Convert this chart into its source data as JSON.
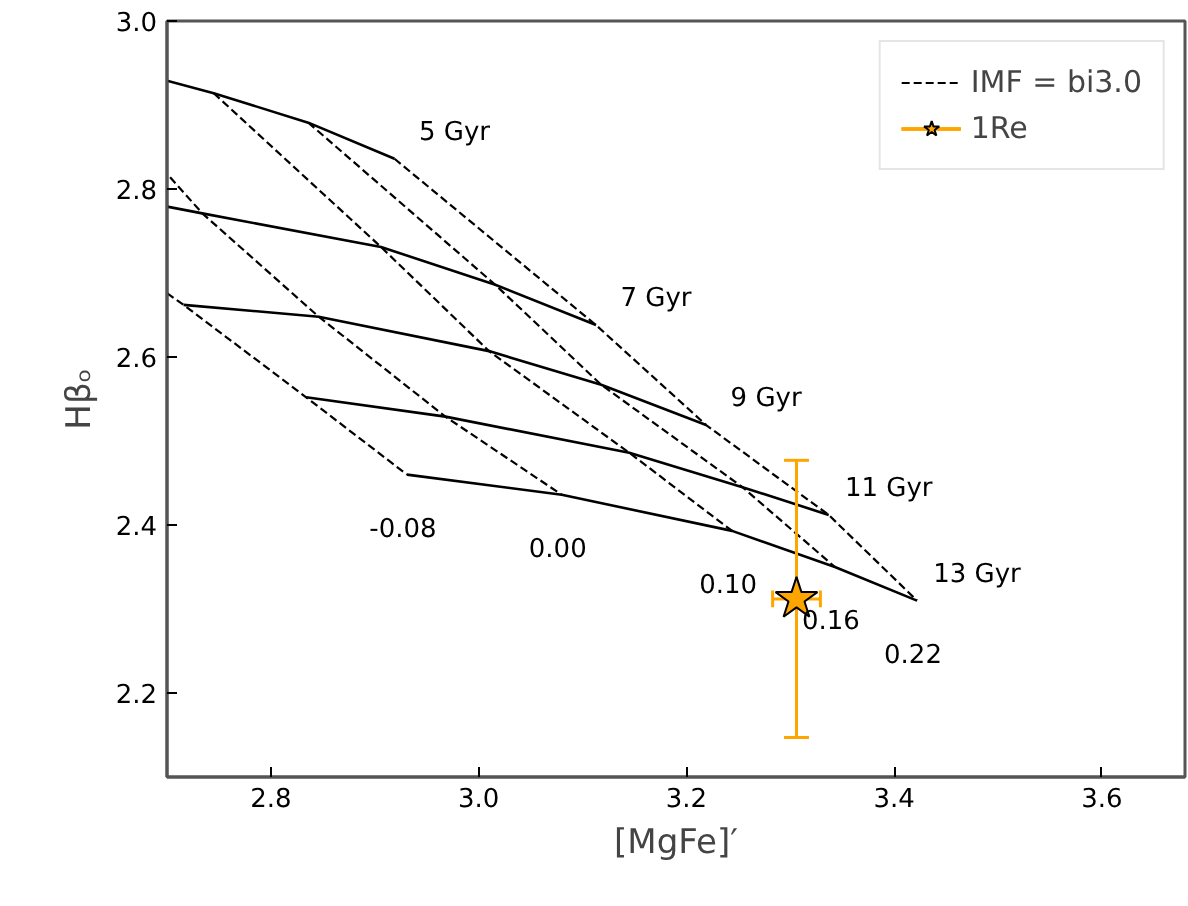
{
  "chart_data": {
    "type": "line",
    "xlabel": "[MgFe]′",
    "ylabel": "Hβₒ",
    "xlim": [
      2.7,
      3.68
    ],
    "ylim": [
      2.1,
      3.0
    ],
    "xticks": [
      2.8,
      {
        "value": 3.0,
        "label": "3.0"
      },
      3.2,
      3.4,
      3.6
    ],
    "yticks": [
      2.2,
      2.4,
      2.6,
      2.8,
      {
        "value": 3.0,
        "label": "3.0"
      }
    ],
    "grid": false,
    "legend": "top right",
    "series": [
      {
        "line_style": "solid",
        "color": "#000000",
        "x": [
          2.7,
          2.745,
          2.836,
          2.919
        ],
        "values": [
          2.929,
          2.914,
          2.879,
          2.836
        ]
      },
      {
        "line_style": "solid",
        "color": "#000000",
        "x": [
          2.7,
          2.734,
          2.906,
          3.016,
          3.113
        ],
        "values": [
          2.779,
          2.771,
          2.731,
          2.686,
          2.638
        ]
      },
      {
        "line_style": "solid",
        "color": "#000000",
        "x": [
          2.716,
          2.846,
          3.01,
          3.118,
          3.219
        ],
        "values": [
          2.662,
          2.648,
          2.607,
          2.567,
          2.519
        ]
      },
      {
        "line_style": "solid",
        "color": "#000000",
        "x": [
          2.834,
          2.968,
          3.145,
          3.254,
          3.337
        ],
        "values": [
          2.552,
          2.529,
          2.486,
          2.445,
          2.412
        ]
      },
      {
        "line_style": "solid",
        "color": "#000000",
        "x": [
          2.931,
          3.08,
          3.244,
          3.343,
          3.422
        ],
        "values": [
          2.46,
          2.436,
          2.393,
          2.35,
          2.31
        ]
      },
      {
        "line_style": "dashed",
        "color": "#000000",
        "name": "IMF = bi3.0",
        "x": [
          2.7,
          2.716,
          2.834,
          2.931
        ],
        "values": [
          2.676,
          2.662,
          2.552,
          2.46
        ]
      },
      {
        "line_style": "dashed",
        "color": "#000000",
        "x": [
          2.703,
          2.734,
          2.846,
          2.968,
          3.08
        ],
        "values": [
          2.814,
          2.771,
          2.648,
          2.529,
          2.436
        ]
      },
      {
        "line_style": "dashed",
        "color": "#000000",
        "x": [
          2.745,
          2.906,
          3.01,
          3.145,
          3.244
        ],
        "values": [
          2.914,
          2.731,
          2.607,
          2.486,
          2.393
        ]
      },
      {
        "line_style": "dashed",
        "color": "#000000",
        "x": [
          2.836,
          3.016,
          3.118,
          3.254,
          3.343
        ],
        "values": [
          2.879,
          2.686,
          2.567,
          2.445,
          2.35
        ]
      },
      {
        "line_style": "dashed",
        "color": "#000000",
        "x": [
          2.919,
          3.113,
          3.219,
          3.337,
          3.422
        ],
        "values": [
          2.836,
          2.638,
          2.519,
          2.412,
          2.31
        ]
      },
      {
        "type": "scatter",
        "marker": "star",
        "color": "#ffa500",
        "name": "1Re",
        "x": [
          3.306
        ],
        "values": [
          2.312
        ],
        "errors": [
          0.165
        ],
        "xerrors": [
          0.023
        ]
      }
    ],
    "annotations": [
      {
        "text": "5 Gyr",
        "x": 2.919,
        "y": 2.836
      },
      {
        "text": "7 Gyr",
        "x": 3.113,
        "y": 2.638
      },
      {
        "text": "9 Gyr",
        "x": 3.219,
        "y": 2.519
      },
      {
        "text": "11 Gyr",
        "x": 3.337,
        "y": 2.412
      },
      {
        "text": "13 Gyr",
        "x": 3.422,
        "y": 2.31
      },
      {
        "text": "-0.08",
        "x": 2.931,
        "y": 2.46
      },
      {
        "text": "0.00",
        "x": 3.08,
        "y": 2.436
      },
      {
        "text": "0.10",
        "x": 3.244,
        "y": 2.393
      },
      {
        "text": "0.16",
        "x": 3.343,
        "y": 2.35
      },
      {
        "text": "0.22",
        "x": 3.422,
        "y": 2.31
      }
    ]
  }
}
